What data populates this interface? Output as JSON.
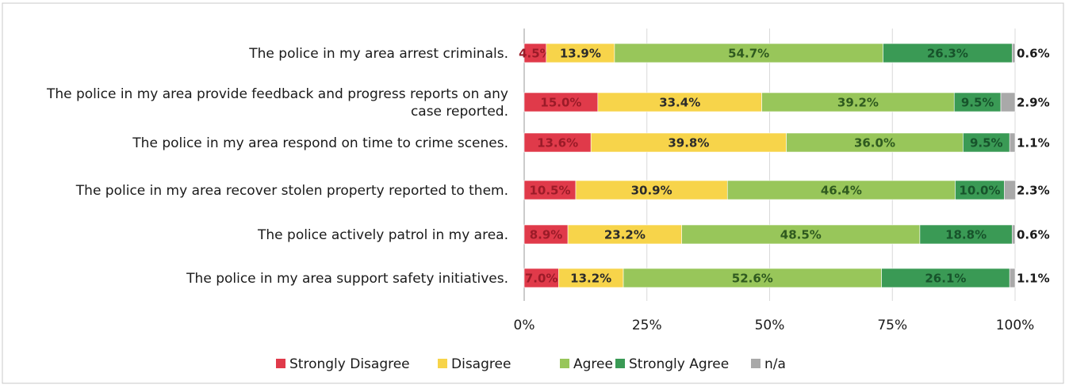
{
  "chart_data": {
    "type": "bar",
    "orientation": "horizontal",
    "stacked": true,
    "categories": [
      "The police in my area arrest criminals.",
      "The police in my area provide feedback and progress reports on any case reported.",
      "The police in my area respond on time to crime scenes.",
      "The police in my area recover stolen property reported to them.",
      "The police actively patrol in my area.",
      "The police in my area support safety initiatives."
    ],
    "category_lines": [
      [
        "The police in my area arrest criminals."
      ],
      [
        "The police in my area provide feedback and progress reports on any",
        "case reported."
      ],
      [
        "The police in my area respond on time to crime scenes."
      ],
      [
        "The police in my area recover stolen property reported to them."
      ],
      [
        "The police actively patrol in my area."
      ],
      [
        "The police in my area support safety initiatives."
      ]
    ],
    "series": [
      {
        "name": "Strongly Disagree",
        "color": "#e03a4a",
        "label_color": "#9b1b28",
        "values": [
          4.5,
          15.0,
          13.6,
          10.5,
          8.9,
          7.0
        ],
        "labels": [
          "4.5%",
          "15.0%",
          "13.6%",
          "10.5%",
          "8.9%",
          "7.0%"
        ]
      },
      {
        "name": "Disagree",
        "color": "#f7d44a",
        "label_color": "#2b2b2b",
        "values": [
          13.9,
          33.4,
          39.8,
          30.9,
          23.2,
          13.2
        ],
        "labels": [
          "13.9%",
          "33.4%",
          "39.8%",
          "30.9%",
          "23.2%",
          "13.2%"
        ]
      },
      {
        "name": "Agree",
        "color": "#98c65a",
        "label_color": "#2f5a1f",
        "values": [
          54.7,
          39.2,
          36.0,
          46.4,
          48.5,
          52.6
        ],
        "labels": [
          "54.7%",
          "39.2%",
          "36.0%",
          "46.4%",
          "48.5%",
          "52.6%"
        ]
      },
      {
        "name": "Strongly Agree",
        "color": "#3a9a55",
        "label_color": "#17532b",
        "values": [
          26.3,
          9.5,
          9.5,
          10.0,
          18.8,
          26.1
        ],
        "labels": [
          "26.3%",
          "9.5%",
          "9.5%",
          "10.0%",
          "18.8%",
          "26.1%"
        ]
      },
      {
        "name": "n/a",
        "color": "#a9a9a9",
        "label_color": "#1a1a1a",
        "values": [
          0.6,
          2.9,
          1.1,
          2.3,
          0.6,
          1.1
        ],
        "labels": [
          "0.6%",
          "2.9%",
          "1.1%",
          "2.3%",
          "0.6%",
          "1.1%"
        ]
      }
    ],
    "xlim": [
      0,
      100
    ],
    "xticks": [
      "0%",
      "25%",
      "50%",
      "75%",
      "100%"
    ],
    "xtick_values": [
      0,
      25,
      50,
      75,
      100
    ],
    "grid": true,
    "legend_position": "bottom",
    "title": "",
    "xlabel": "",
    "ylabel": ""
  }
}
